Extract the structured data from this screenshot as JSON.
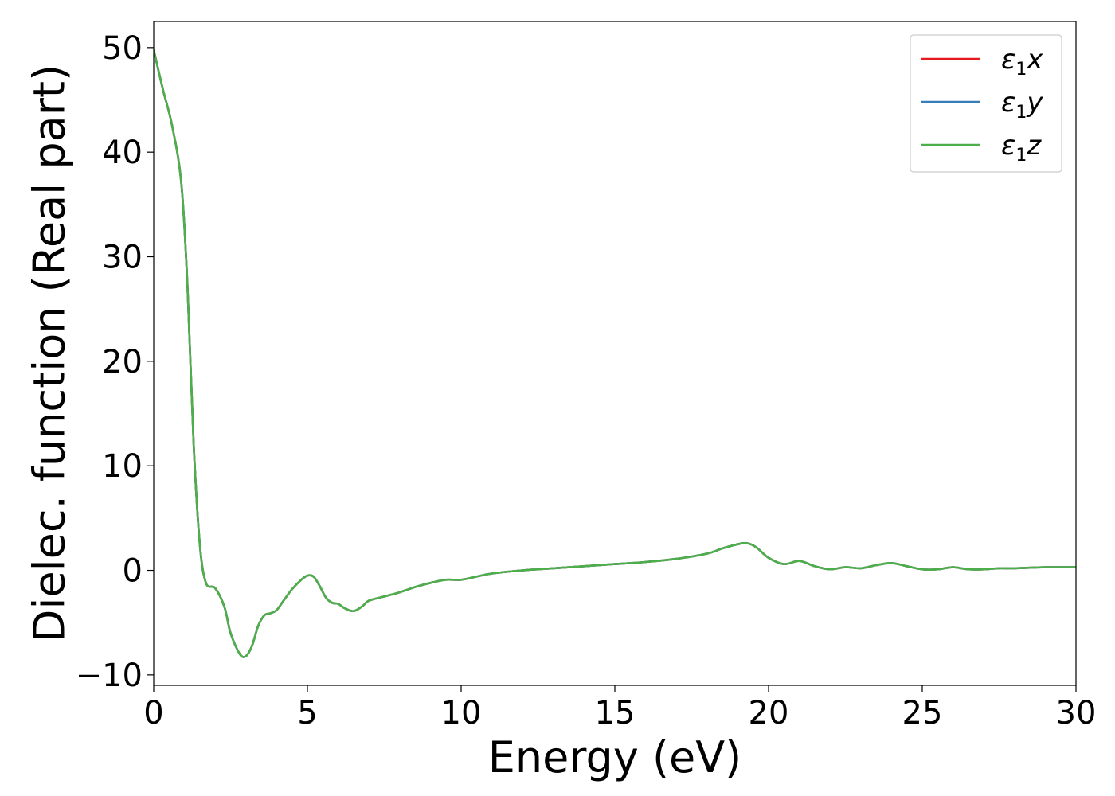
{
  "chart_data": {
    "type": "line",
    "title": "",
    "xlabel": "Energy (eV)",
    "ylabel": "Dielec. function (Real part)",
    "xlim": [
      0,
      30
    ],
    "ylim": [
      -11,
      52.5
    ],
    "xticks": [
      0,
      5,
      10,
      15,
      20,
      25,
      30
    ],
    "yticks": [
      -10,
      0,
      10,
      20,
      30,
      40,
      50
    ],
    "xtick_labels": [
      "0",
      "5",
      "10",
      "15",
      "20",
      "25",
      "30"
    ],
    "ytick_labels": [
      "−10",
      "0",
      "10",
      "20",
      "30",
      "40",
      "50"
    ],
    "grid": false,
    "legend_position": "top-right",
    "x": [
      0,
      0.3,
      0.6,
      0.9,
      1.1,
      1.3,
      1.5,
      1.7,
      2.0,
      2.3,
      2.5,
      2.8,
      3.0,
      3.2,
      3.4,
      3.6,
      3.8,
      4.0,
      4.2,
      4.5,
      4.8,
      5.0,
      5.2,
      5.4,
      5.6,
      5.8,
      6.0,
      6.2,
      6.5,
      6.8,
      7.0,
      7.5,
      8.0,
      8.5,
      9.0,
      9.5,
      10.0,
      10.5,
      11.0,
      12.0,
      13.0,
      14.0,
      15.0,
      16.0,
      17.0,
      18.0,
      18.5,
      19.0,
      19.3,
      19.6,
      20.0,
      20.5,
      21.0,
      21.5,
      22.0,
      22.5,
      23.0,
      23.5,
      24.0,
      24.5,
      25.0,
      25.5,
      26.0,
      26.5,
      27.0,
      27.5,
      28.0,
      29.0,
      30.0
    ],
    "series": [
      {
        "name": "ε1x",
        "color": "#e41a1c",
        "y": [
          49.8,
          46,
          42.5,
          37,
          27,
          12,
          2.5,
          -1.2,
          -1.7,
          -3.5,
          -6,
          -8,
          -8.2,
          -7.2,
          -5.3,
          -4.3,
          -4.1,
          -3.8,
          -3.0,
          -1.8,
          -0.9,
          -0.5,
          -0.6,
          -1.5,
          -2.6,
          -3.1,
          -3.2,
          -3.6,
          -3.9,
          -3.4,
          -2.9,
          -2.5,
          -2.1,
          -1.6,
          -1.2,
          -0.9,
          -0.9,
          -0.6,
          -0.3,
          0.0,
          0.2,
          0.4,
          0.6,
          0.8,
          1.1,
          1.6,
          2.1,
          2.5,
          2.6,
          2.2,
          1.2,
          0.6,
          0.9,
          0.4,
          0.1,
          0.3,
          0.2,
          0.5,
          0.7,
          0.4,
          0.1,
          0.1,
          0.3,
          0.1,
          0.1,
          0.2,
          0.2,
          0.3,
          0.3
        ]
      },
      {
        "name": "ε1y",
        "color": "#377eb8",
        "y": [
          49.8,
          46,
          42.5,
          37,
          27,
          12,
          2.5,
          -1.2,
          -1.7,
          -3.5,
          -6,
          -8,
          -8.2,
          -7.2,
          -5.3,
          -4.3,
          -4.1,
          -3.8,
          -3.0,
          -1.8,
          -0.9,
          -0.5,
          -0.6,
          -1.5,
          -2.6,
          -3.1,
          -3.2,
          -3.6,
          -3.9,
          -3.4,
          -2.9,
          -2.5,
          -2.1,
          -1.6,
          -1.2,
          -0.9,
          -0.9,
          -0.6,
          -0.3,
          0.0,
          0.2,
          0.4,
          0.6,
          0.8,
          1.1,
          1.6,
          2.1,
          2.5,
          2.6,
          2.2,
          1.2,
          0.6,
          0.9,
          0.4,
          0.1,
          0.3,
          0.2,
          0.5,
          0.7,
          0.4,
          0.1,
          0.1,
          0.3,
          0.1,
          0.1,
          0.2,
          0.2,
          0.3,
          0.3
        ]
      },
      {
        "name": "ε1z",
        "color": "#4daf4a",
        "y": [
          49.8,
          46,
          42.5,
          37,
          27,
          12,
          2.5,
          -1.2,
          -1.7,
          -3.5,
          -6,
          -8,
          -8.2,
          -7.2,
          -5.3,
          -4.3,
          -4.1,
          -3.8,
          -3.0,
          -1.8,
          -0.9,
          -0.5,
          -0.6,
          -1.5,
          -2.6,
          -3.1,
          -3.2,
          -3.6,
          -3.9,
          -3.4,
          -2.9,
          -2.5,
          -2.1,
          -1.6,
          -1.2,
          -0.9,
          -0.9,
          -0.6,
          -0.3,
          0.0,
          0.2,
          0.4,
          0.6,
          0.8,
          1.1,
          1.6,
          2.1,
          2.5,
          2.6,
          2.2,
          1.2,
          0.6,
          0.9,
          0.4,
          0.1,
          0.3,
          0.2,
          0.5,
          0.7,
          0.4,
          0.1,
          0.1,
          0.3,
          0.1,
          0.1,
          0.2,
          0.2,
          0.3,
          0.3
        ]
      }
    ],
    "legend": [
      {
        "symbol": "ε",
        "sub": "1",
        "axis": "x",
        "color": "#e41a1c"
      },
      {
        "symbol": "ε",
        "sub": "1",
        "axis": "y",
        "color": "#377eb8"
      },
      {
        "symbol": "ε",
        "sub": "1",
        "axis": "z",
        "color": "#4daf4a"
      }
    ]
  }
}
